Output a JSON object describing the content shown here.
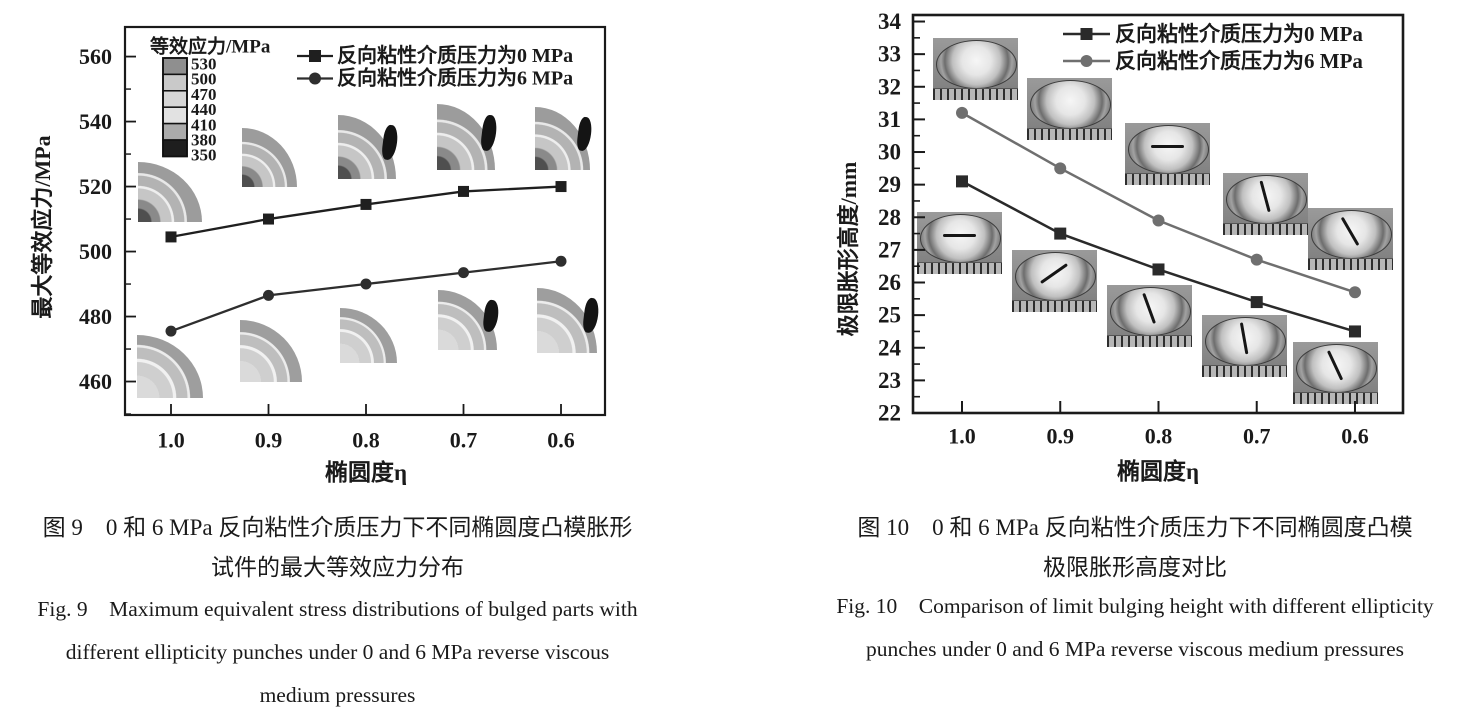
{
  "page": {
    "background": "#ffffff",
    "ink": "#1a1a1a"
  },
  "figure9": {
    "caption_zh_line1": "图 9　0 和 6 MPa 反向粘性介质压力下不同椭圆度凸模胀形",
    "caption_zh_line2": "试件的最大等效应力分布",
    "caption_en_line1": "Fig. 9　Maximum equivalent stress distributions of bulged parts with",
    "caption_en_line2": "different ellipticity punches under 0 and 6 MPa reverse viscous",
    "caption_en_line3": "medium pressures"
  },
  "figure10": {
    "caption_zh_line1": "图 10　0 和 6 MPa 反向粘性介质压力下不同椭圆度凸模",
    "caption_zh_line2": "极限胀形高度对比",
    "caption_en_line1": "Fig. 10　Comparison of limit bulging height with different ellipticity",
    "caption_en_line2": "punches under 0 and 6 MPa reverse viscous medium pressures"
  },
  "chart_data": [
    {
      "id": "fig9",
      "type": "line",
      "title": "",
      "xlabel": "椭圆度η",
      "ylabel": "最大等效应力/MPa",
      "categories": [
        "1.0",
        "0.9",
        "0.8",
        "0.7",
        "0.6"
      ],
      "x_axis_reversed": true,
      "ylim": [
        449.7,
        569.1
      ],
      "yticks": [
        460,
        480,
        500,
        520,
        540,
        560
      ],
      "y_minor_step": 10,
      "grid": false,
      "legend_position": "top-right-inside",
      "series": [
        {
          "name": "反向粘性介质压力为0 MPa",
          "marker": "square",
          "color": "#1f1f1f",
          "values": [
            504.5,
            510,
            514.5,
            518.5,
            520
          ]
        },
        {
          "name": "反向粘性介质压力为6 MPa",
          "marker": "circle",
          "color": "#2e2e2e",
          "values": [
            475.5,
            486.5,
            490,
            493.5,
            497
          ]
        }
      ],
      "colorbar": {
        "title": "等效应力/MPa",
        "tick_labels": [
          "530",
          "500",
          "470",
          "440",
          "410",
          "380",
          "350"
        ],
        "cell_colors": [
          "#8f8f8f",
          "#c9c9c9",
          "#d7d7d7",
          "#e2e2e2",
          "#ababab",
          "#1e1e1e"
        ]
      },
      "insets": "quarter-section equivalent-stress contour plots, one per ellipticity, two rows"
    },
    {
      "id": "fig10",
      "type": "line",
      "title": "",
      "xlabel": "椭圆度η",
      "ylabel": "极限胀形高度/mm",
      "categories": [
        "1.0",
        "0.9",
        "0.8",
        "0.7",
        "0.6"
      ],
      "x_axis_reversed": true,
      "ylim": [
        22,
        34.2
      ],
      "yticks": [
        22,
        23,
        24,
        25,
        26,
        27,
        28,
        29,
        30,
        31,
        32,
        33,
        34
      ],
      "y_minor_step": 0.5,
      "grid": false,
      "legend_position": "top-inside",
      "series": [
        {
          "name": "反向粘性介质压力为0 MPa",
          "marker": "square",
          "color": "#2a2a2a",
          "values": [
            29.1,
            27.5,
            26.4,
            25.4,
            24.5
          ]
        },
        {
          "name": "反向粘性介质压力为6 MPa",
          "marker": "circle",
          "color": "#6f6f6f",
          "values": [
            31.2,
            29.5,
            27.9,
            26.7,
            25.7
          ]
        }
      ],
      "insets": "photographs of bulged specimens over rulers, one per ellipticity, two rows"
    }
  ]
}
